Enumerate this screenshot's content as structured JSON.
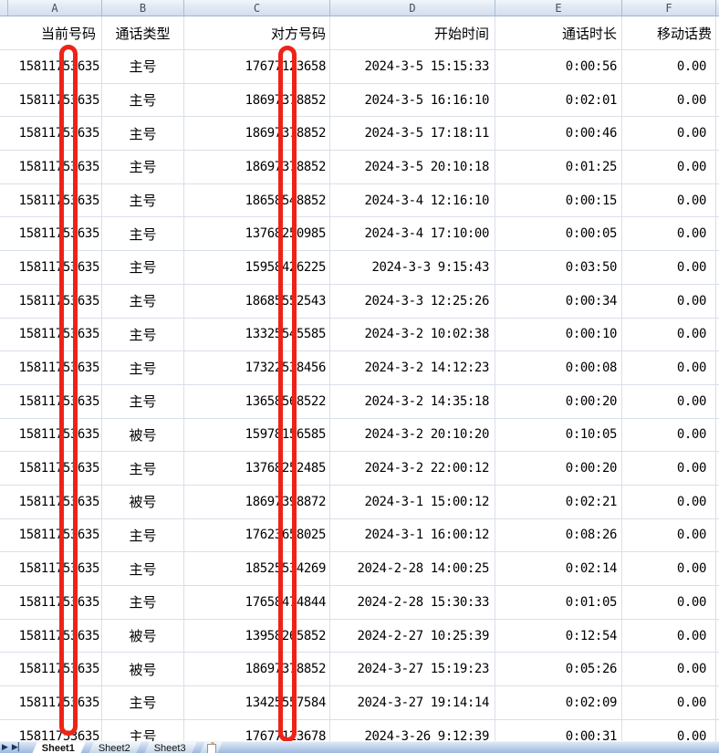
{
  "columns": {
    "letters": [
      "A",
      "B",
      "C",
      "D",
      "E",
      "F"
    ]
  },
  "table": {
    "headers": [
      "当前号码",
      "通话类型",
      "对方号码",
      "开始时间",
      "通话时长",
      "移动话费"
    ],
    "rows": [
      [
        "15811753635",
        "主号",
        "17677123658",
        "2024-3-5 15:15:33",
        "0:00:56",
        "0.00"
      ],
      [
        "15811753635",
        "主号",
        "18697378852",
        "2024-3-5 16:16:10",
        "0:02:01",
        "0.00"
      ],
      [
        "15811753635",
        "主号",
        "18697378852",
        "2024-3-5 17:18:11",
        "0:00:46",
        "0.00"
      ],
      [
        "15811753635",
        "主号",
        "18697378852",
        "2024-3-5 20:10:18",
        "0:01:25",
        "0.00"
      ],
      [
        "15811753635",
        "主号",
        "18658548852",
        "2024-3-4 12:16:10",
        "0:00:15",
        "0.00"
      ],
      [
        "15811753635",
        "主号",
        "13768250985",
        "2024-3-4 17:10:00",
        "0:00:05",
        "0.00"
      ],
      [
        "15811753635",
        "主号",
        "15958426225",
        "2024-3-3 9:15:43",
        "0:03:50",
        "0.00"
      ],
      [
        "15811753635",
        "主号",
        "18685552543",
        "2024-3-3 12:25:26",
        "0:00:34",
        "0.00"
      ],
      [
        "15811753635",
        "主号",
        "13325545585",
        "2024-3-2 10:02:38",
        "0:00:10",
        "0.00"
      ],
      [
        "15811753635",
        "主号",
        "17322538456",
        "2024-3-2 14:12:23",
        "0:00:08",
        "0.00"
      ],
      [
        "15811753635",
        "主号",
        "13658568522",
        "2024-3-2 14:35:18",
        "0:00:20",
        "0.00"
      ],
      [
        "15811753635",
        "被号",
        "15978156585",
        "2024-3-2 20:10:20",
        "0:10:05",
        "0.00"
      ],
      [
        "15811753635",
        "主号",
        "13768252485",
        "2024-3-2 22:00:12",
        "0:00:20",
        "0.00"
      ],
      [
        "15811753635",
        "被号",
        "18697398872",
        "2024-3-1 15:00:12",
        "0:02:21",
        "0.00"
      ],
      [
        "15811753635",
        "主号",
        "17623658025",
        "2024-3-1 16:00:12",
        "0:08:26",
        "0.00"
      ],
      [
        "15811753635",
        "主号",
        "18525534269",
        "2024-2-28 14:00:25",
        "0:02:14",
        "0.00"
      ],
      [
        "15811753635",
        "主号",
        "17658474844",
        "2024-2-28 15:30:33",
        "0:01:05",
        "0.00"
      ],
      [
        "15811753635",
        "被号",
        "13958265852",
        "2024-2-27 10:25:39",
        "0:12:54",
        "0.00"
      ],
      [
        "15811753635",
        "被号",
        "18697378852",
        "2024-3-27 15:19:23",
        "0:05:26",
        "0.00"
      ],
      [
        "15811753635",
        "主号",
        "13425557584",
        "2024-3-27 19:14:14",
        "0:02:09",
        "0.00"
      ],
      [
        "15811753635",
        "主号",
        "17677123678",
        "2024-3-26 9:12:39",
        "0:00:31",
        "0.00"
      ]
    ]
  },
  "annotations": {
    "color": "#ee2317",
    "bars": [
      "redaction-bar-column-a",
      "redaction-bar-column-c"
    ]
  },
  "sheet_tabs": {
    "tabs": [
      "Sheet1",
      "Sheet2",
      "Sheet3"
    ],
    "active_tab": "Sheet1",
    "nav_icons": [
      "scroll-next-sheet-icon",
      "scroll-last-sheet-icon"
    ],
    "nav_glyphs": [
      "▶",
      "▶▏"
    ],
    "insert_icon": "insert-worksheet-icon",
    "insert_star_glyph": "✦"
  },
  "colors": {
    "annotation_red": "#ee2317",
    "grid_line": "#d9dfe9",
    "header_border": "#9eb6ce"
  }
}
